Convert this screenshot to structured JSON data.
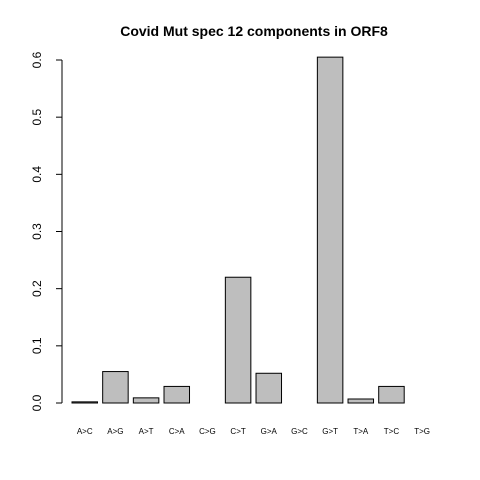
{
  "chart_data": {
    "type": "bar",
    "title": "Covid Mut spec 12 components in ORF8",
    "xlabel": "",
    "ylabel": "",
    "categories": [
      "A>C",
      "A>G",
      "A>T",
      "C>A",
      "C>G",
      "C>T",
      "G>A",
      "G>C",
      "G>T",
      "T>A",
      "T>C",
      "T>G"
    ],
    "values": [
      0.002,
      0.055,
      0.009,
      0.029,
      0.0,
      0.22,
      0.052,
      0.0,
      0.605,
      0.007,
      0.029,
      0.0
    ],
    "ylim": [
      0,
      0.6
    ],
    "yticks": [
      0.0,
      0.1,
      0.2,
      0.3,
      0.4,
      0.5,
      0.6
    ],
    "ytick_labels": [
      "0.0",
      "0.1",
      "0.2",
      "0.3",
      "0.4",
      "0.5",
      "0.6"
    ],
    "bar_color": "#bebebe",
    "grid": false,
    "legend": "none"
  }
}
